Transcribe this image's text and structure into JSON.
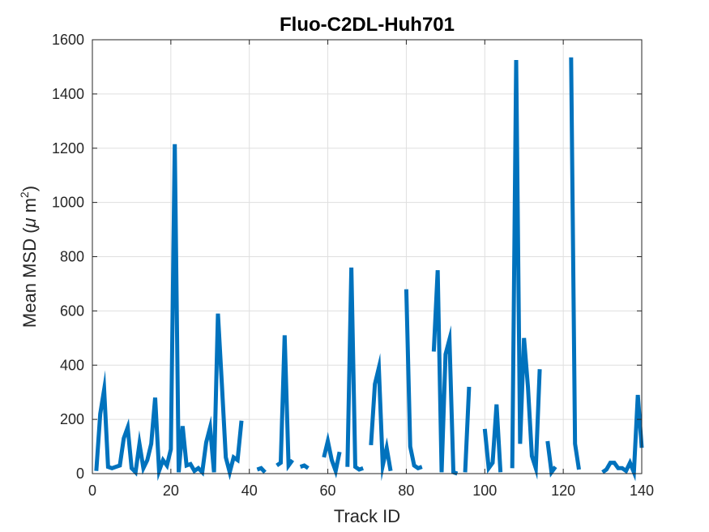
{
  "chart_data": {
    "type": "line",
    "title": "Fluo-C2DL-Huh701",
    "xlabel": "Track ID",
    "ylabel_prefix": "Mean MSD (",
    "ylabel_mu": "μ",
    "ylabel_unit": " m",
    "ylabel_sup": "2",
    "ylabel_suffix": ")",
    "xlim": [
      0,
      140
    ],
    "ylim": [
      0,
      1600
    ],
    "xticks": [
      0,
      20,
      40,
      60,
      80,
      100,
      120,
      140
    ],
    "yticks": [
      0,
      200,
      400,
      600,
      800,
      1000,
      1200,
      1400,
      1600
    ],
    "grid": true,
    "line_color": "#0072BD",
    "series": [
      {
        "segments": [
          [
            [
              1,
              10
            ],
            [
              2,
              220
            ],
            [
              3,
              310
            ],
            [
              4,
              25
            ],
            [
              5,
              20
            ],
            [
              6,
              25
            ],
            [
              7,
              30
            ],
            [
              8,
              130
            ],
            [
              9,
              170
            ],
            [
              10,
              20
            ],
            [
              11,
              5
            ],
            [
              12,
              110
            ],
            [
              13,
              20
            ],
            [
              14,
              50
            ],
            [
              15,
              110
            ],
            [
              16,
              280
            ],
            [
              17,
              10
            ],
            [
              18,
              50
            ],
            [
              19,
              30
            ],
            [
              20,
              90
            ],
            [
              21,
              1215
            ],
            [
              22,
              5
            ],
            [
              23,
              175
            ],
            [
              24,
              30
            ],
            [
              25,
              35
            ],
            [
              26,
              10
            ],
            [
              27,
              20
            ],
            [
              28,
              5
            ],
            [
              29,
              115
            ],
            [
              30,
              170
            ],
            [
              31,
              5
            ],
            [
              32,
              590
            ],
            [
              33,
              330
            ],
            [
              34,
              60
            ],
            [
              35,
              5
            ],
            [
              36,
              60
            ],
            [
              37,
              50
            ],
            [
              38,
              195
            ]
          ],
          [
            [
              42,
              15
            ],
            [
              43,
              20
            ],
            [
              44,
              5
            ]
          ],
          [
            [
              47,
              30
            ],
            [
              48,
              40
            ],
            [
              49,
              510
            ],
            [
              50,
              30
            ],
            [
              51,
              50
            ]
          ],
          [
            [
              53,
              25
            ],
            [
              54,
              30
            ],
            [
              55,
              20
            ]
          ],
          [
            [
              59,
              60
            ],
            [
              60,
              120
            ],
            [
              61,
              50
            ],
            [
              62,
              10
            ],
            [
              63,
              80
            ]
          ],
          [
            [
              65,
              25
            ],
            [
              66,
              760
            ],
            [
              67,
              25
            ],
            [
              68,
              15
            ],
            [
              69,
              20
            ]
          ],
          [
            [
              71,
              105
            ],
            [
              72,
              330
            ],
            [
              73,
              390
            ],
            [
              74,
              30
            ],
            [
              75,
              95
            ],
            [
              76,
              10
            ]
          ],
          [
            [
              80,
              680
            ],
            [
              81,
              100
            ],
            [
              82,
              30
            ],
            [
              83,
              20
            ],
            [
              84,
              25
            ]
          ],
          [
            [
              87,
              450
            ],
            [
              88,
              750
            ],
            [
              89,
              5
            ],
            [
              90,
              440
            ],
            [
              91,
              495
            ],
            [
              92,
              5
            ],
            [
              93,
              0
            ]
          ],
          [
            [
              95,
              5
            ],
            [
              96,
              320
            ]
          ],
          [
            [
              100,
              165
            ],
            [
              101,
              20
            ],
            [
              102,
              40
            ],
            [
              103,
              255
            ],
            [
              104,
              5
            ]
          ],
          [
            [
              107,
              20
            ],
            [
              108,
              1525
            ],
            [
              109,
              110
            ],
            [
              110,
              500
            ],
            [
              111,
              320
            ],
            [
              112,
              65
            ],
            [
              113,
              20
            ],
            [
              114,
              385
            ]
          ],
          [
            [
              116,
              120
            ],
            [
              117,
              5
            ],
            [
              118,
              25
            ]
          ],
          [
            [
              122,
              1535
            ],
            [
              123,
              110
            ],
            [
              124,
              15
            ]
          ],
          [
            [
              130,
              5
            ],
            [
              131,
              15
            ],
            [
              132,
              40
            ],
            [
              133,
              40
            ],
            [
              134,
              20
            ],
            [
              135,
              20
            ],
            [
              136,
              10
            ],
            [
              137,
              40
            ],
            [
              138,
              5
            ],
            [
              139,
              290
            ],
            [
              140,
              95
            ]
          ]
        ]
      }
    ]
  }
}
